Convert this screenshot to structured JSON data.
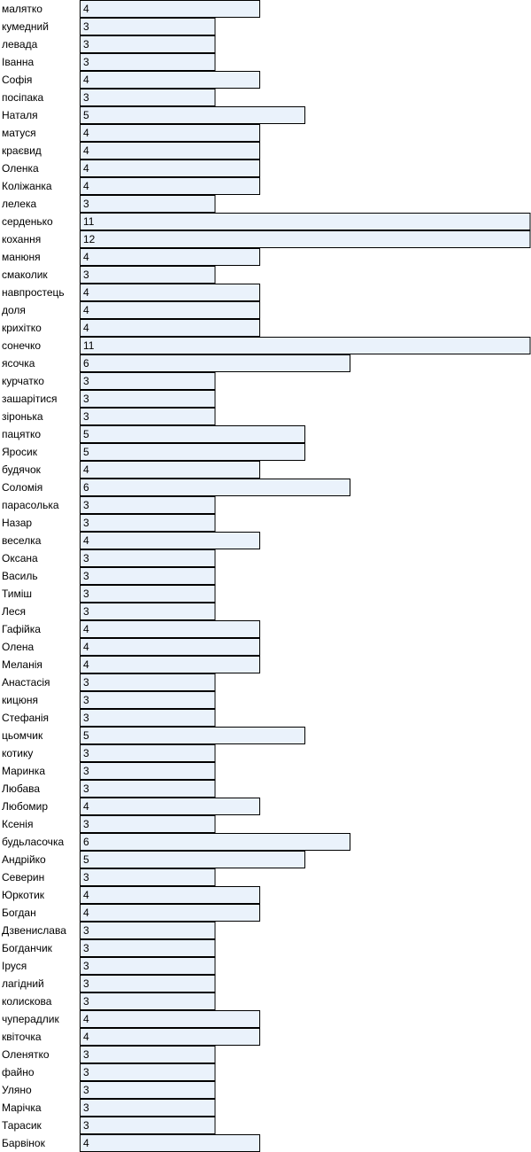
{
  "chart_data": {
    "type": "bar",
    "orientation": "horizontal",
    "grid": false,
    "legend": "none",
    "xlim": [
      0,
      12
    ],
    "colors": {
      "bar_fill": "#eaf2fb",
      "bar_stroke": "#000000",
      "text": "#000000",
      "background": "#ffffff"
    },
    "categories": [
      "малятко",
      "кумедний",
      "левада",
      "Іванна",
      "Софія",
      "посіпака",
      "Наталя",
      "матуся",
      "краєвид",
      "Оленка",
      "Коліжанка",
      "лелека",
      "серденько",
      "кохання",
      "манюня",
      "смаколик",
      "навпростець",
      "доля",
      "крихітко",
      "сонечко",
      "ясочка",
      "курчатко",
      "зашарітися",
      "зіронька",
      "пацятко",
      "Яросик",
      "будячок",
      "Соломія",
      "парасолька",
      "Назар",
      "веселка",
      "Оксана",
      "Василь",
      "Тиміш",
      "Леся",
      "Гафійка",
      "Олена",
      "Меланія",
      "Анастасія",
      "кицюня",
      "Стефанія",
      "цьомчик",
      "котику",
      "Маринка",
      "Любава",
      "Любомир",
      "Ксенія",
      "будьласочка",
      "Андрійко",
      "Северин",
      "Юркотик",
      "Богдан",
      "Дзвенислава",
      "Богданчик",
      "Іруся",
      "лагідний",
      "колискова",
      "чуперадлик",
      "квіточка",
      "Оленятко",
      "файно",
      "Уляно",
      "Марічка",
      "Тарасик",
      "Барвінок"
    ],
    "values": [
      4,
      3,
      3,
      3,
      4,
      3,
      5,
      4,
      4,
      4,
      4,
      3,
      11,
      12,
      4,
      3,
      4,
      4,
      4,
      11,
      6,
      3,
      3,
      3,
      5,
      5,
      4,
      6,
      3,
      3,
      4,
      3,
      3,
      3,
      3,
      4,
      4,
      4,
      3,
      3,
      3,
      5,
      3,
      3,
      3,
      4,
      3,
      6,
      5,
      3,
      4,
      4,
      3,
      3,
      3,
      3,
      3,
      4,
      4,
      3,
      3,
      3,
      3,
      3,
      4
    ]
  }
}
